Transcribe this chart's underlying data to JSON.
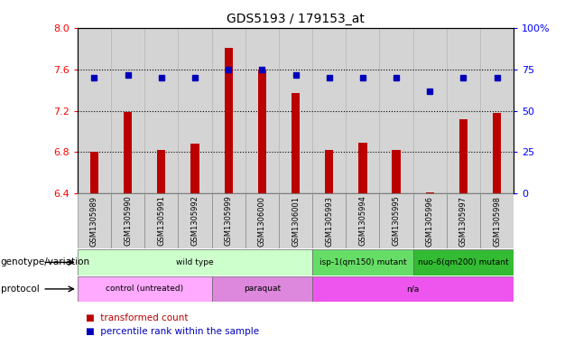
{
  "title": "GDS5193 / 179153_at",
  "samples": [
    "GSM1305989",
    "GSM1305990",
    "GSM1305991",
    "GSM1305992",
    "GSM1305999",
    "GSM1306000",
    "GSM1306001",
    "GSM1305993",
    "GSM1305994",
    "GSM1305995",
    "GSM1305996",
    "GSM1305997",
    "GSM1305998"
  ],
  "bar_values": [
    6.8,
    7.19,
    6.82,
    6.88,
    7.81,
    7.6,
    7.37,
    6.82,
    6.89,
    6.82,
    6.41,
    7.12,
    7.18
  ],
  "bar_base": 6.4,
  "dot_values": [
    70,
    72,
    70,
    70,
    75,
    75,
    72,
    70,
    70,
    70,
    62,
    70,
    70
  ],
  "ylim_left": [
    6.4,
    8.0
  ],
  "ylim_right": [
    0,
    100
  ],
  "yticks_left": [
    6.4,
    6.8,
    7.2,
    7.6,
    8.0
  ],
  "yticks_right": [
    0,
    25,
    50,
    75,
    100
  ],
  "hlines": [
    6.8,
    7.2,
    7.6
  ],
  "bar_color": "#bb0000",
  "dot_color": "#0000bb",
  "cell_bg": "#d4d4d4",
  "plot_bg": "#ffffff",
  "genotype_spans": [
    {
      "label": "wild type",
      "start": 0,
      "end": 7,
      "color": "#ccffcc"
    },
    {
      "label": "isp-1(qm150) mutant",
      "start": 7,
      "end": 10,
      "color": "#66dd66"
    },
    {
      "label": "nuo-6(qm200) mutant",
      "start": 10,
      "end": 13,
      "color": "#33bb33"
    }
  ],
  "protocol_spans": [
    {
      "label": "control (untreated)",
      "start": 0,
      "end": 4,
      "color": "#ffaaff"
    },
    {
      "label": "paraquat",
      "start": 4,
      "end": 7,
      "color": "#dd88dd"
    },
    {
      "label": "n/a",
      "start": 7,
      "end": 13,
      "color": "#ee55ee"
    }
  ],
  "row_labels": [
    "genotype/variation",
    "protocol"
  ],
  "legend_items": [
    {
      "label": "transformed count",
      "color": "#bb0000"
    },
    {
      "label": "percentile rank within the sample",
      "color": "#0000bb"
    }
  ],
  "title_fontsize": 10,
  "tick_fontsize": 8,
  "bar_width": 0.25
}
